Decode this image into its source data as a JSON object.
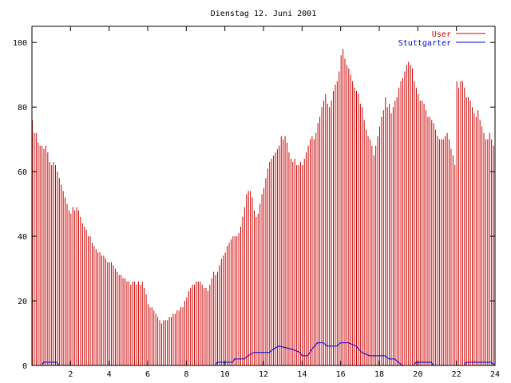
{
  "chart_data": {
    "type": "bar",
    "title": "Dienstag 12. Juni 2001",
    "xlabel": "",
    "ylabel": "",
    "xlim": [
      0,
      24
    ],
    "ylim": [
      0,
      105
    ],
    "x_ticks": [
      "2",
      "4",
      "6",
      "8",
      "10",
      "12",
      "14",
      "16",
      "18",
      "20",
      "22",
      "24"
    ],
    "y_ticks": [
      "0",
      "20",
      "40",
      "60",
      "80",
      "100"
    ],
    "grid": false,
    "legend_position": "top-right",
    "colors": {
      "User": "#cc0000",
      "Stuttgarter": "#0000cc",
      "axis": "#000000"
    },
    "series": [
      {
        "name": "User",
        "style": "impulses",
        "points": [
          [
            0.0,
            76
          ],
          [
            0.1,
            72
          ],
          [
            0.2,
            72
          ],
          [
            0.3,
            69
          ],
          [
            0.4,
            68
          ],
          [
            0.5,
            68
          ],
          [
            0.6,
            67
          ],
          [
            0.7,
            68
          ],
          [
            0.8,
            66
          ],
          [
            0.9,
            63
          ],
          [
            1.0,
            62
          ],
          [
            1.1,
            63
          ],
          [
            1.2,
            62
          ],
          [
            1.3,
            60
          ],
          [
            1.4,
            58
          ],
          [
            1.5,
            56
          ],
          [
            1.6,
            54
          ],
          [
            1.7,
            52
          ],
          [
            1.8,
            50
          ],
          [
            1.9,
            48
          ],
          [
            2.0,
            47
          ],
          [
            2.1,
            49
          ],
          [
            2.2,
            48
          ],
          [
            2.3,
            49
          ],
          [
            2.4,
            48
          ],
          [
            2.5,
            46
          ],
          [
            2.6,
            44
          ],
          [
            2.7,
            43
          ],
          [
            2.8,
            42
          ],
          [
            2.9,
            40
          ],
          [
            3.0,
            40
          ],
          [
            3.1,
            38
          ],
          [
            3.2,
            37
          ],
          [
            3.3,
            36
          ],
          [
            3.4,
            35
          ],
          [
            3.5,
            35
          ],
          [
            3.6,
            34
          ],
          [
            3.7,
            34
          ],
          [
            3.8,
            33
          ],
          [
            3.9,
            32
          ],
          [
            4.0,
            32
          ],
          [
            4.1,
            32
          ],
          [
            4.2,
            31
          ],
          [
            4.3,
            30
          ],
          [
            4.4,
            29
          ],
          [
            4.5,
            28
          ],
          [
            4.6,
            28
          ],
          [
            4.7,
            27
          ],
          [
            4.8,
            27
          ],
          [
            4.9,
            26
          ],
          [
            5.0,
            26
          ],
          [
            5.1,
            25
          ],
          [
            5.2,
            26
          ],
          [
            5.3,
            26
          ],
          [
            5.4,
            25
          ],
          [
            5.5,
            26
          ],
          [
            5.6,
            25
          ],
          [
            5.7,
            26
          ],
          [
            5.8,
            24
          ],
          [
            5.9,
            22
          ],
          [
            6.0,
            19
          ],
          [
            6.1,
            18
          ],
          [
            6.2,
            18
          ],
          [
            6.3,
            17
          ],
          [
            6.4,
            16
          ],
          [
            6.5,
            15
          ],
          [
            6.6,
            14
          ],
          [
            6.7,
            13
          ],
          [
            6.8,
            14
          ],
          [
            6.9,
            14
          ],
          [
            7.0,
            14
          ],
          [
            7.1,
            15
          ],
          [
            7.2,
            15
          ],
          [
            7.3,
            16
          ],
          [
            7.4,
            16
          ],
          [
            7.5,
            17
          ],
          [
            7.6,
            17
          ],
          [
            7.7,
            18
          ],
          [
            7.8,
            18
          ],
          [
            7.9,
            20
          ],
          [
            8.0,
            21
          ],
          [
            8.1,
            23
          ],
          [
            8.2,
            24
          ],
          [
            8.3,
            25
          ],
          [
            8.4,
            25
          ],
          [
            8.5,
            26
          ],
          [
            8.6,
            26
          ],
          [
            8.7,
            26
          ],
          [
            8.8,
            25
          ],
          [
            8.9,
            24
          ],
          [
            9.0,
            24
          ],
          [
            9.1,
            23
          ],
          [
            9.2,
            25
          ],
          [
            9.3,
            27
          ],
          [
            9.4,
            29
          ],
          [
            9.5,
            28
          ],
          [
            9.6,
            29
          ],
          [
            9.7,
            31
          ],
          [
            9.8,
            33
          ],
          [
            9.9,
            34
          ],
          [
            10.0,
            35
          ],
          [
            10.1,
            37
          ],
          [
            10.2,
            38
          ],
          [
            10.3,
            39
          ],
          [
            10.4,
            40
          ],
          [
            10.5,
            40
          ],
          [
            10.6,
            40
          ],
          [
            10.7,
            41
          ],
          [
            10.8,
            43
          ],
          [
            10.9,
            46
          ],
          [
            11.0,
            49
          ],
          [
            11.1,
            53
          ],
          [
            11.2,
            54
          ],
          [
            11.3,
            54
          ],
          [
            11.4,
            52
          ],
          [
            11.5,
            48
          ],
          [
            11.6,
            46
          ],
          [
            11.7,
            47
          ],
          [
            11.8,
            50
          ],
          [
            11.9,
            53
          ],
          [
            12.0,
            55
          ],
          [
            12.1,
            58
          ],
          [
            12.2,
            61
          ],
          [
            12.3,
            63
          ],
          [
            12.4,
            64
          ],
          [
            12.5,
            65
          ],
          [
            12.6,
            66
          ],
          [
            12.7,
            67
          ],
          [
            12.8,
            68
          ],
          [
            12.9,
            71
          ],
          [
            13.0,
            70
          ],
          [
            13.1,
            71
          ],
          [
            13.2,
            69
          ],
          [
            13.3,
            66
          ],
          [
            13.4,
            64
          ],
          [
            13.5,
            63
          ],
          [
            13.6,
            64
          ],
          [
            13.7,
            62
          ],
          [
            13.8,
            62
          ],
          [
            13.9,
            63
          ],
          [
            14.0,
            62
          ],
          [
            14.1,
            64
          ],
          [
            14.2,
            66
          ],
          [
            14.3,
            68
          ],
          [
            14.4,
            70
          ],
          [
            14.5,
            71
          ],
          [
            14.6,
            70
          ],
          [
            14.7,
            72
          ],
          [
            14.8,
            75
          ],
          [
            14.9,
            77
          ],
          [
            15.0,
            80
          ],
          [
            15.1,
            82
          ],
          [
            15.2,
            84
          ],
          [
            15.3,
            81
          ],
          [
            15.4,
            80
          ],
          [
            15.5,
            82
          ],
          [
            15.6,
            85
          ],
          [
            15.7,
            87
          ],
          [
            15.8,
            88
          ],
          [
            15.9,
            91
          ],
          [
            16.0,
            96
          ],
          [
            16.1,
            98
          ],
          [
            16.2,
            95
          ],
          [
            16.3,
            93
          ],
          [
            16.4,
            92
          ],
          [
            16.5,
            90
          ],
          [
            16.6,
            88
          ],
          [
            16.7,
            86
          ],
          [
            16.8,
            85
          ],
          [
            16.9,
            84
          ],
          [
            17.0,
            81
          ],
          [
            17.1,
            80
          ],
          [
            17.2,
            76
          ],
          [
            17.3,
            73
          ],
          [
            17.4,
            71
          ],
          [
            17.5,
            70
          ],
          [
            17.6,
            68
          ],
          [
            17.7,
            65
          ],
          [
            17.8,
            68
          ],
          [
            17.9,
            71
          ],
          [
            18.0,
            74
          ],
          [
            18.1,
            77
          ],
          [
            18.2,
            79
          ],
          [
            18.3,
            83
          ],
          [
            18.4,
            80
          ],
          [
            18.5,
            81
          ],
          [
            18.6,
            78
          ],
          [
            18.7,
            80
          ],
          [
            18.8,
            82
          ],
          [
            18.9,
            83
          ],
          [
            19.0,
            86
          ],
          [
            19.1,
            88
          ],
          [
            19.2,
            89
          ],
          [
            19.3,
            91
          ],
          [
            19.4,
            93
          ],
          [
            19.5,
            94
          ],
          [
            19.6,
            93
          ],
          [
            19.7,
            92
          ],
          [
            19.8,
            88
          ],
          [
            19.9,
            86
          ],
          [
            20.0,
            84
          ],
          [
            20.1,
            82
          ],
          [
            20.2,
            82
          ],
          [
            20.3,
            81
          ],
          [
            20.4,
            79
          ],
          [
            20.5,
            77
          ],
          [
            20.6,
            77
          ],
          [
            20.7,
            76
          ],
          [
            20.8,
            75
          ],
          [
            20.9,
            73
          ],
          [
            21.0,
            71
          ],
          [
            21.1,
            70
          ],
          [
            21.2,
            70
          ],
          [
            21.3,
            70
          ],
          [
            21.4,
            71
          ],
          [
            21.5,
            72
          ],
          [
            21.6,
            70
          ],
          [
            21.7,
            67
          ],
          [
            21.8,
            65
          ],
          [
            21.9,
            62
          ],
          [
            22.0,
            88
          ],
          [
            22.1,
            86
          ],
          [
            22.2,
            88
          ],
          [
            22.3,
            88
          ],
          [
            22.4,
            86
          ],
          [
            22.5,
            83
          ],
          [
            22.6,
            83
          ],
          [
            22.7,
            82
          ],
          [
            22.8,
            80
          ],
          [
            22.9,
            78
          ],
          [
            23.0,
            77
          ],
          [
            23.1,
            79
          ],
          [
            23.2,
            76
          ],
          [
            23.3,
            74
          ],
          [
            23.4,
            72
          ],
          [
            23.5,
            70
          ],
          [
            23.6,
            70
          ],
          [
            23.7,
            72
          ],
          [
            23.8,
            70
          ],
          [
            23.9,
            68
          ]
        ]
      },
      {
        "name": "Stuttgarter",
        "style": "line",
        "points": [
          [
            0,
            0
          ],
          [
            0.5,
            0
          ],
          [
            0.6,
            1
          ],
          [
            1.3,
            1
          ],
          [
            1.4,
            0
          ],
          [
            9.5,
            0
          ],
          [
            9.6,
            1
          ],
          [
            10.4,
            1
          ],
          [
            10.5,
            2
          ],
          [
            11.0,
            2
          ],
          [
            11.2,
            3
          ],
          [
            11.5,
            4
          ],
          [
            12.3,
            4
          ],
          [
            12.5,
            5
          ],
          [
            12.8,
            6
          ],
          [
            13.5,
            5
          ],
          [
            13.9,
            4
          ],
          [
            14.0,
            3
          ],
          [
            14.3,
            3
          ],
          [
            14.5,
            5
          ],
          [
            14.8,
            7
          ],
          [
            15.1,
            7
          ],
          [
            15.3,
            6
          ],
          [
            15.8,
            6
          ],
          [
            16.0,
            7
          ],
          [
            16.4,
            7
          ],
          [
            16.8,
            6
          ],
          [
            17.1,
            4
          ],
          [
            17.5,
            3
          ],
          [
            18.3,
            3
          ],
          [
            18.5,
            2
          ],
          [
            18.8,
            2
          ],
          [
            19.0,
            1
          ],
          [
            19.2,
            0
          ],
          [
            19.8,
            0
          ],
          [
            19.9,
            1
          ],
          [
            20.7,
            1
          ],
          [
            20.8,
            0
          ],
          [
            22.4,
            0
          ],
          [
            22.5,
            1
          ],
          [
            23.8,
            1
          ],
          [
            24,
            0
          ]
        ]
      }
    ]
  }
}
